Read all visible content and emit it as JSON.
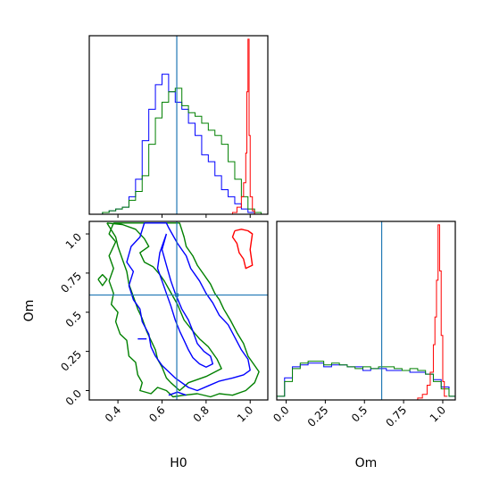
{
  "colors": {
    "blue": "#0000ff",
    "green": "#008000",
    "red": "#ff0000",
    "truth": "#1f77b4",
    "frame": "#000000"
  },
  "chart_data": [
    {
      "type": "histogram",
      "panel": "H0 marginal",
      "xlim": [
        0.27,
        1.08
      ],
      "x_ticks": [
        0.4,
        0.6,
        0.8,
        1.0
      ],
      "truth_line": 0.667,
      "series": [
        {
          "color": "blue",
          "bin_edges": [
            0.27,
            0.3,
            0.33,
            0.36,
            0.39,
            0.42,
            0.45,
            0.48,
            0.51,
            0.54,
            0.57,
            0.6,
            0.63,
            0.66,
            0.69,
            0.72,
            0.75,
            0.78,
            0.81,
            0.84,
            0.87,
            0.9,
            0.93,
            0.96,
            0.99,
            1.02,
            1.05,
            1.08
          ],
          "values": [
            0.0,
            0.0,
            0.01,
            0.02,
            0.03,
            0.04,
            0.1,
            0.2,
            0.42,
            0.6,
            0.74,
            0.8,
            0.7,
            0.64,
            0.6,
            0.52,
            0.45,
            0.34,
            0.3,
            0.22,
            0.14,
            0.1,
            0.06,
            0.03,
            0.01,
            0.0,
            0.0
          ]
        },
        {
          "color": "green",
          "bin_edges": [
            0.27,
            0.3,
            0.33,
            0.36,
            0.39,
            0.42,
            0.45,
            0.48,
            0.51,
            0.54,
            0.57,
            0.6,
            0.63,
            0.66,
            0.69,
            0.72,
            0.75,
            0.78,
            0.81,
            0.84,
            0.87,
            0.9,
            0.93,
            0.96,
            0.99,
            1.02,
            1.05,
            1.08
          ],
          "values": [
            0.0,
            0.0,
            0.01,
            0.02,
            0.03,
            0.04,
            0.08,
            0.13,
            0.22,
            0.4,
            0.55,
            0.64,
            0.7,
            0.72,
            0.62,
            0.58,
            0.56,
            0.52,
            0.48,
            0.45,
            0.4,
            0.3,
            0.2,
            0.1,
            0.03,
            0.01,
            0.0
          ]
        },
        {
          "color": "red",
          "bin_edges": [
            0.9,
            0.92,
            0.94,
            0.96,
            0.97,
            0.98,
            0.985,
            0.99,
            0.995,
            1.0,
            1.01,
            1.02,
            1.05
          ],
          "values": [
            0.0,
            0.01,
            0.04,
            0.1,
            0.18,
            0.35,
            0.7,
            1.0,
            0.45,
            0.1,
            0.02,
            0.0
          ]
        }
      ]
    },
    {
      "type": "contour",
      "panel": "H0 vs Om",
      "xlabel": "H0",
      "ylabel": "Om",
      "xlim": [
        0.27,
        1.08
      ],
      "ylim": [
        -0.06,
        1.08
      ],
      "x_ticks": [
        0.4,
        0.6,
        0.8,
        1.0
      ],
      "y_ticks": [
        0.0,
        0.25,
        0.5,
        0.75,
        1.0
      ],
      "truth_point": [
        0.667,
        0.61
      ],
      "series": [
        {
          "color": "green",
          "contours": [
            [
              [
                0.35,
                1.07
              ],
              [
                0.42,
                1.06
              ],
              [
                0.48,
                1.03
              ],
              [
                0.52,
                0.97
              ],
              [
                0.54,
                0.92
              ],
              [
                0.5,
                0.88
              ],
              [
                0.52,
                0.82
              ],
              [
                0.56,
                0.79
              ],
              [
                0.59,
                0.74
              ],
              [
                0.61,
                0.7
              ],
              [
                0.63,
                0.65
              ],
              [
                0.67,
                0.55
              ],
              [
                0.7,
                0.45
              ],
              [
                0.74,
                0.38
              ],
              [
                0.77,
                0.33
              ],
              [
                0.81,
                0.28
              ],
              [
                0.85,
                0.2
              ],
              [
                0.87,
                0.14
              ],
              [
                0.8,
                0.09
              ],
              [
                0.72,
                0.05
              ],
              [
                0.68,
                0.0
              ],
              [
                0.64,
                0.05
              ],
              [
                0.62,
                0.08
              ],
              [
                0.6,
                0.15
              ],
              [
                0.58,
                0.2
              ],
              [
                0.57,
                0.26
              ],
              [
                0.55,
                0.32
              ],
              [
                0.53,
                0.38
              ],
              [
                0.51,
                0.46
              ],
              [
                0.49,
                0.52
              ],
              [
                0.47,
                0.6
              ],
              [
                0.45,
                0.68
              ],
              [
                0.44,
                0.76
              ],
              [
                0.42,
                0.84
              ],
              [
                0.4,
                0.92
              ],
              [
                0.39,
                0.98
              ],
              [
                0.35,
                1.07
              ]
            ],
            [
              [
                0.38,
                1.07
              ],
              [
                0.36,
                1.0
              ],
              [
                0.39,
                0.95
              ],
              [
                0.36,
                0.86
              ],
              [
                0.38,
                0.78
              ],
              [
                0.36,
                0.7
              ],
              [
                0.38,
                0.62
              ],
              [
                0.37,
                0.55
              ],
              [
                0.4,
                0.5
              ],
              [
                0.39,
                0.44
              ],
              [
                0.41,
                0.36
              ],
              [
                0.44,
                0.32
              ],
              [
                0.45,
                0.22
              ],
              [
                0.48,
                0.18
              ],
              [
                0.49,
                0.1
              ],
              [
                0.51,
                0.05
              ],
              [
                0.5,
                0.0
              ],
              [
                0.55,
                -0.02
              ],
              [
                0.58,
                0.02
              ],
              [
                0.62,
                0.0
              ],
              [
                0.65,
                -0.04
              ],
              [
                0.7,
                -0.03
              ],
              [
                0.76,
                -0.02
              ],
              [
                0.82,
                -0.04
              ],
              [
                0.86,
                -0.02
              ],
              [
                0.92,
                -0.03
              ],
              [
                0.98,
                0.0
              ],
              [
                1.02,
                0.05
              ],
              [
                1.04,
                0.12
              ],
              [
                1.02,
                0.16
              ],
              [
                0.99,
                0.22
              ],
              [
                0.97,
                0.3
              ],
              [
                0.94,
                0.37
              ],
              [
                0.91,
                0.45
              ],
              [
                0.88,
                0.52
              ],
              [
                0.86,
                0.58
              ],
              [
                0.84,
                0.62
              ],
              [
                0.82,
                0.68
              ],
              [
                0.79,
                0.74
              ],
              [
                0.76,
                0.8
              ],
              [
                0.74,
                0.86
              ],
              [
                0.71,
                0.92
              ],
              [
                0.7,
                0.98
              ],
              [
                0.68,
                1.07
              ],
              [
                0.38,
                1.07
              ]
            ],
            [
              [
                0.31,
                0.71
              ],
              [
                0.33,
                0.74
              ],
              [
                0.35,
                0.71
              ],
              [
                0.33,
                0.67
              ],
              [
                0.31,
                0.71
              ]
            ]
          ]
        },
        {
          "color": "blue",
          "contours": [
            [
              [
                0.62,
                1.0
              ],
              [
                0.6,
                0.9
              ],
              [
                0.62,
                0.8
              ],
              [
                0.64,
                0.7
              ],
              [
                0.66,
                0.62
              ],
              [
                0.69,
                0.52
              ],
              [
                0.72,
                0.45
              ],
              [
                0.74,
                0.38
              ],
              [
                0.76,
                0.3
              ],
              [
                0.79,
                0.25
              ],
              [
                0.82,
                0.22
              ],
              [
                0.83,
                0.17
              ],
              [
                0.8,
                0.15
              ],
              [
                0.77,
                0.17
              ],
              [
                0.74,
                0.21
              ],
              [
                0.72,
                0.26
              ],
              [
                0.7,
                0.32
              ],
              [
                0.68,
                0.38
              ],
              [
                0.66,
                0.45
              ],
              [
                0.64,
                0.54
              ],
              [
                0.62,
                0.62
              ],
              [
                0.6,
                0.7
              ],
              [
                0.58,
                0.78
              ],
              [
                0.59,
                0.88
              ],
              [
                0.62,
                1.0
              ]
            ],
            [
              [
                0.52,
                1.07
              ],
              [
                0.5,
                0.98
              ],
              [
                0.46,
                0.92
              ],
              [
                0.44,
                0.82
              ],
              [
                0.47,
                0.76
              ],
              [
                0.45,
                0.67
              ],
              [
                0.47,
                0.58
              ],
              [
                0.5,
                0.52
              ],
              [
                0.51,
                0.44
              ],
              [
                0.54,
                0.36
              ],
              [
                0.55,
                0.28
              ],
              [
                0.57,
                0.22
              ],
              [
                0.6,
                0.16
              ],
              [
                0.63,
                0.12
              ],
              [
                0.66,
                0.08
              ],
              [
                0.72,
                0.02
              ],
              [
                0.76,
                0.0
              ],
              [
                0.81,
                0.03
              ],
              [
                0.86,
                0.06
              ],
              [
                0.92,
                0.08
              ],
              [
                0.97,
                0.1
              ],
              [
                1.0,
                0.13
              ],
              [
                0.99,
                0.2
              ],
              [
                0.96,
                0.26
              ],
              [
                0.93,
                0.34
              ],
              [
                0.9,
                0.42
              ],
              [
                0.86,
                0.48
              ],
              [
                0.83,
                0.56
              ],
              [
                0.8,
                0.62
              ],
              [
                0.77,
                0.7
              ],
              [
                0.73,
                0.78
              ],
              [
                0.71,
                0.86
              ],
              [
                0.67,
                0.94
              ],
              [
                0.63,
                1.04
              ],
              [
                0.62,
                1.07
              ],
              [
                0.52,
                1.07
              ]
            ],
            [
              [
                0.49,
                0.33
              ],
              [
                0.53,
                0.33
              ]
            ],
            [
              [
                0.63,
                -0.03
              ],
              [
                0.67,
                -0.01
              ],
              [
                0.71,
                -0.03
              ]
            ]
          ]
        },
        {
          "color": "red",
          "contours": [
            [
              [
                0.93,
                1.02
              ],
              [
                0.96,
                1.03
              ],
              [
                0.99,
                1.02
              ],
              [
                1.01,
                1.0
              ],
              [
                1.0,
                0.9
              ],
              [
                1.01,
                0.8
              ],
              [
                0.98,
                0.78
              ],
              [
                0.97,
                0.84
              ],
              [
                0.95,
                0.88
              ],
              [
                0.94,
                0.94
              ],
              [
                0.92,
                0.98
              ],
              [
                0.93,
                1.02
              ]
            ]
          ]
        }
      ],
      "truth_color": "truth"
    },
    {
      "type": "histogram",
      "panel": "Om marginal",
      "xlabel": "Om",
      "xlim": [
        -0.06,
        1.08
      ],
      "x_ticks": [
        0.0,
        0.25,
        0.5,
        0.75,
        1.0
      ],
      "truth_line": 0.61,
      "series": [
        {
          "color": "blue",
          "bin_edges": [
            -0.06,
            -0.01,
            0.04,
            0.09,
            0.14,
            0.19,
            0.24,
            0.29,
            0.34,
            0.39,
            0.44,
            0.49,
            0.54,
            0.59,
            0.64,
            0.69,
            0.74,
            0.79,
            0.84,
            0.89,
            0.94,
            0.99,
            1.04,
            1.08
          ],
          "values": [
            0.02,
            0.12,
            0.18,
            0.19,
            0.2,
            0.2,
            0.18,
            0.19,
            0.19,
            0.18,
            0.18,
            0.16,
            0.17,
            0.17,
            0.16,
            0.16,
            0.16,
            0.15,
            0.15,
            0.14,
            0.11,
            0.07,
            0.02
          ]
        },
        {
          "color": "green",
          "bin_edges": [
            -0.06,
            -0.01,
            0.04,
            0.09,
            0.14,
            0.19,
            0.24,
            0.29,
            0.34,
            0.39,
            0.44,
            0.49,
            0.54,
            0.59,
            0.64,
            0.69,
            0.74,
            0.79,
            0.84,
            0.89,
            0.94,
            0.99,
            1.04,
            1.08
          ],
          "values": [
            0.02,
            0.1,
            0.17,
            0.2,
            0.21,
            0.21,
            0.19,
            0.2,
            0.19,
            0.18,
            0.17,
            0.18,
            0.17,
            0.18,
            0.18,
            0.17,
            0.16,
            0.17,
            0.16,
            0.14,
            0.1,
            0.06,
            0.02
          ]
        },
        {
          "color": "red",
          "bin_edges": [
            0.8,
            0.84,
            0.87,
            0.9,
            0.92,
            0.94,
            0.95,
            0.96,
            0.97,
            0.98,
            0.99,
            1.0,
            1.01,
            1.03
          ],
          "values": [
            0.0,
            0.01,
            0.03,
            0.08,
            0.15,
            0.3,
            0.45,
            0.65,
            0.95,
            0.7,
            0.35,
            0.1,
            0.02
          ]
        }
      ]
    }
  ]
}
